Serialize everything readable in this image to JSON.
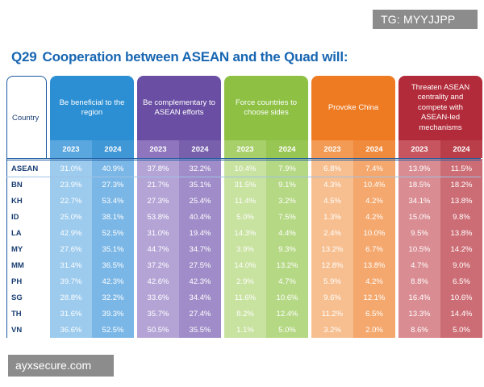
{
  "watermarks": {
    "top": "TG: MYYJJPP",
    "bottom": "ayxsecure.com"
  },
  "title": {
    "qnum": "Q29",
    "text": "Cooperation between ASEAN and the Quad will:"
  },
  "colors": {
    "title": "#1766b2",
    "border": "#1a5aa0",
    "label_text": "#1a3f73",
    "groups": [
      {
        "head": "#2c8fd3",
        "y1": "#5aa7df",
        "y2": "#4097d6",
        "c1": "#9ccbee",
        "c2": "#7bb7e6"
      },
      {
        "head": "#6a4ea3",
        "y1": "#8e75bd",
        "y2": "#7860ad",
        "c1": "#b4a4d6",
        "c2": "#9f8cc8"
      },
      {
        "head": "#8dc043",
        "y1": "#a7cf6a",
        "y2": "#98c653",
        "c1": "#c8e2a0",
        "c2": "#b5d884"
      },
      {
        "head": "#ee7b22",
        "y1": "#f39a55",
        "y2": "#f08a3c",
        "c1": "#f7bf90",
        "c2": "#f4a86e"
      },
      {
        "head": "#b22b3a",
        "y1": "#c6555f",
        "y2": "#b93e4a",
        "c1": "#d98c92",
        "c2": "#cc6d75"
      }
    ]
  },
  "chart_data": {
    "type": "table",
    "country_header": "Country",
    "years": [
      "2023",
      "2024"
    ],
    "groups": [
      "Be beneficial to the region",
      "Be complementary to ASEAN efforts",
      "Force countries to choose sides",
      "Provoke China",
      "Threaten ASEAN centrality and compete with ASEAN-led mechanisms"
    ],
    "rows": [
      {
        "country": "ASEAN",
        "values": [
          "31.0%",
          "40.9%",
          "37.8%",
          "32.2%",
          "10.4%",
          "7.9%",
          "6.8%",
          "7.4%",
          "13.9%",
          "11.5%"
        ]
      },
      {
        "country": "BN",
        "values": [
          "23.9%",
          "27.3%",
          "21.7%",
          "35.1%",
          "31.5%",
          "9.1%",
          "4.3%",
          "10.4%",
          "18.5%",
          "18.2%"
        ]
      },
      {
        "country": "KH",
        "values": [
          "22.7%",
          "53.4%",
          "27.3%",
          "25.4%",
          "11.4%",
          "3.2%",
          "4.5%",
          "4.2%",
          "34.1%",
          "13.8%"
        ]
      },
      {
        "country": "ID",
        "values": [
          "25.0%",
          "38.1%",
          "53.8%",
          "40.4%",
          "5.0%",
          "7.5%",
          "1.3%",
          "4.2%",
          "15.0%",
          "9.8%"
        ]
      },
      {
        "country": "LA",
        "values": [
          "42.9%",
          "52.5%",
          "31.0%",
          "19.4%",
          "14.3%",
          "4.4%",
          "2.4%",
          "10.0%",
          "9.5%",
          "13.8%"
        ]
      },
      {
        "country": "MY",
        "values": [
          "27.6%",
          "35.1%",
          "44.7%",
          "34.7%",
          "3.9%",
          "9.3%",
          "13.2%",
          "6.7%",
          "10.5%",
          "14.2%"
        ]
      },
      {
        "country": "MM",
        "values": [
          "31.4%",
          "36.5%",
          "37.2%",
          "27.5%",
          "14.0%",
          "13.2%",
          "12.8%",
          "13.8%",
          "4.7%",
          "9.0%"
        ]
      },
      {
        "country": "PH",
        "values": [
          "39.7%",
          "42.3%",
          "42.6%",
          "42.3%",
          "2.9%",
          "4.7%",
          "5.9%",
          "4.2%",
          "8.8%",
          "6.5%"
        ]
      },
      {
        "country": "SG",
        "values": [
          "28.8%",
          "32.2%",
          "33.6%",
          "34.4%",
          "11.6%",
          "10.6%",
          "9.6%",
          "12.1%",
          "16.4%",
          "10.6%"
        ]
      },
      {
        "country": "TH",
        "values": [
          "31.6%",
          "39.3%",
          "35.7%",
          "27.4%",
          "8.2%",
          "12.4%",
          "11.2%",
          "6.5%",
          "13.3%",
          "14.4%"
        ]
      },
      {
        "country": "VN",
        "values": [
          "36.6%",
          "52.5%",
          "50.5%",
          "35.5%",
          "1.1%",
          "5.0%",
          "3.2%",
          "2.0%",
          "8.6%",
          "5.0%"
        ]
      }
    ]
  }
}
